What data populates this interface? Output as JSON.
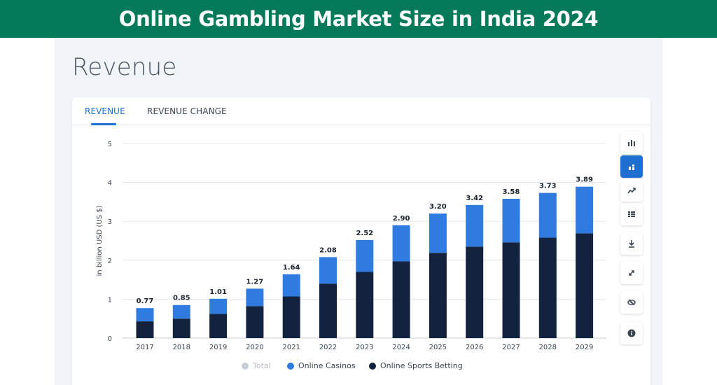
{
  "banner": {
    "title": "Online Gambling Market Size in India 2024"
  },
  "page": {
    "title": "Revenue"
  },
  "tabs": [
    {
      "label": "REVENUE",
      "active": true
    },
    {
      "label": "REVENUE CHANGE",
      "active": false
    }
  ],
  "toolbar": {
    "icons": [
      "bar-chart-icon",
      "stacked-bar-icon",
      "line-trend-icon",
      "table-icon",
      "download-icon",
      "fullscreen-icon",
      "hide-icon",
      "info-icon"
    ]
  },
  "colors": {
    "accent": "#1f6fd1",
    "casinos": "#2f7be0",
    "sports": "#13233e",
    "total": "#c9ced4",
    "banner": "#057a5a"
  },
  "chart_data": {
    "type": "bar",
    "stacked": true,
    "categories": [
      "2017",
      "2018",
      "2019",
      "2020",
      "2021",
      "2022",
      "2023",
      "2024",
      "2025",
      "2026",
      "2027",
      "2028",
      "2029"
    ],
    "series": [
      {
        "name": "Online Sports Betting",
        "values": [
          0.43,
          0.5,
          0.62,
          0.82,
          1.07,
          1.4,
          1.7,
          1.97,
          2.19,
          2.35,
          2.46,
          2.58,
          2.69
        ]
      },
      {
        "name": "Online Casinos",
        "values": [
          0.34,
          0.35,
          0.39,
          0.45,
          0.57,
          0.68,
          0.82,
          0.93,
          1.01,
          1.07,
          1.12,
          1.15,
          1.2
        ]
      }
    ],
    "totals": [
      "0.77",
      "0.85",
      "1.01",
      "1.27",
      "1.64",
      "2.08",
      "2.52",
      "2.90",
      "3.20",
      "3.42",
      "3.58",
      "3.73",
      "3.89"
    ],
    "total_values": [
      0.77,
      0.85,
      1.01,
      1.27,
      1.64,
      2.08,
      2.52,
      2.9,
      3.2,
      3.42,
      3.58,
      3.73,
      3.89
    ],
    "ylabel": "in billion USD (US $)",
    "ylim": [
      0,
      5
    ],
    "yticks": [
      "0",
      "1",
      "2",
      "3",
      "4",
      "5"
    ],
    "grid": true,
    "legend": {
      "position": "bottom-center",
      "items": [
        {
          "label": "Total",
          "disabled": true
        },
        {
          "label": "Online Casinos",
          "disabled": false
        },
        {
          "label": "Online Sports Betting",
          "disabled": false
        }
      ]
    }
  }
}
